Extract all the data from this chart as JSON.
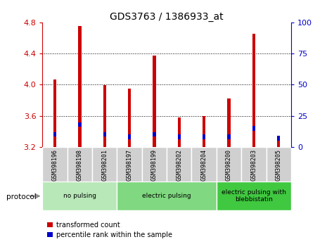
{
  "title": "GDS3763 / 1386933_at",
  "samples": [
    "GSM398196",
    "GSM398198",
    "GSM398201",
    "GSM398197",
    "GSM398199",
    "GSM398202",
    "GSM398204",
    "GSM398200",
    "GSM398203",
    "GSM398205"
  ],
  "transformed_count": [
    4.07,
    4.75,
    3.99,
    3.95,
    4.37,
    3.58,
    3.6,
    3.82,
    4.65,
    3.34
  ],
  "percentile_rank": [
    10,
    18,
    10,
    8,
    10,
    8,
    8,
    8,
    15,
    7
  ],
  "ylim_left": [
    3.2,
    4.8
  ],
  "ylim_right": [
    0,
    100
  ],
  "yticks_left": [
    3.2,
    3.6,
    4.0,
    4.4,
    4.8
  ],
  "yticks_right": [
    0,
    25,
    50,
    75,
    100
  ],
  "bar_bottom": 3.2,
  "groups": [
    {
      "label": "no pulsing",
      "start": 0,
      "end": 3,
      "color": "#b8e8b8"
    },
    {
      "label": "electric pulsing",
      "start": 3,
      "end": 7,
      "color": "#80d880"
    },
    {
      "label": "electric pulsing with\nblebbistatin",
      "start": 7,
      "end": 10,
      "color": "#40c840"
    }
  ],
  "red_color": "#cc0000",
  "blue_color": "#0000cc",
  "bar_width": 0.12,
  "blue_bar_width": 0.12,
  "blue_bar_height": 0.06,
  "grid_color": "#000000",
  "legend_red": "transformed count",
  "legend_blue": "percentile rank within the sample",
  "left_tick_color": "#cc0000",
  "right_tick_color": "#0000cc",
  "sample_box_color": "#d0d0d0",
  "protocol_label": "protocol"
}
